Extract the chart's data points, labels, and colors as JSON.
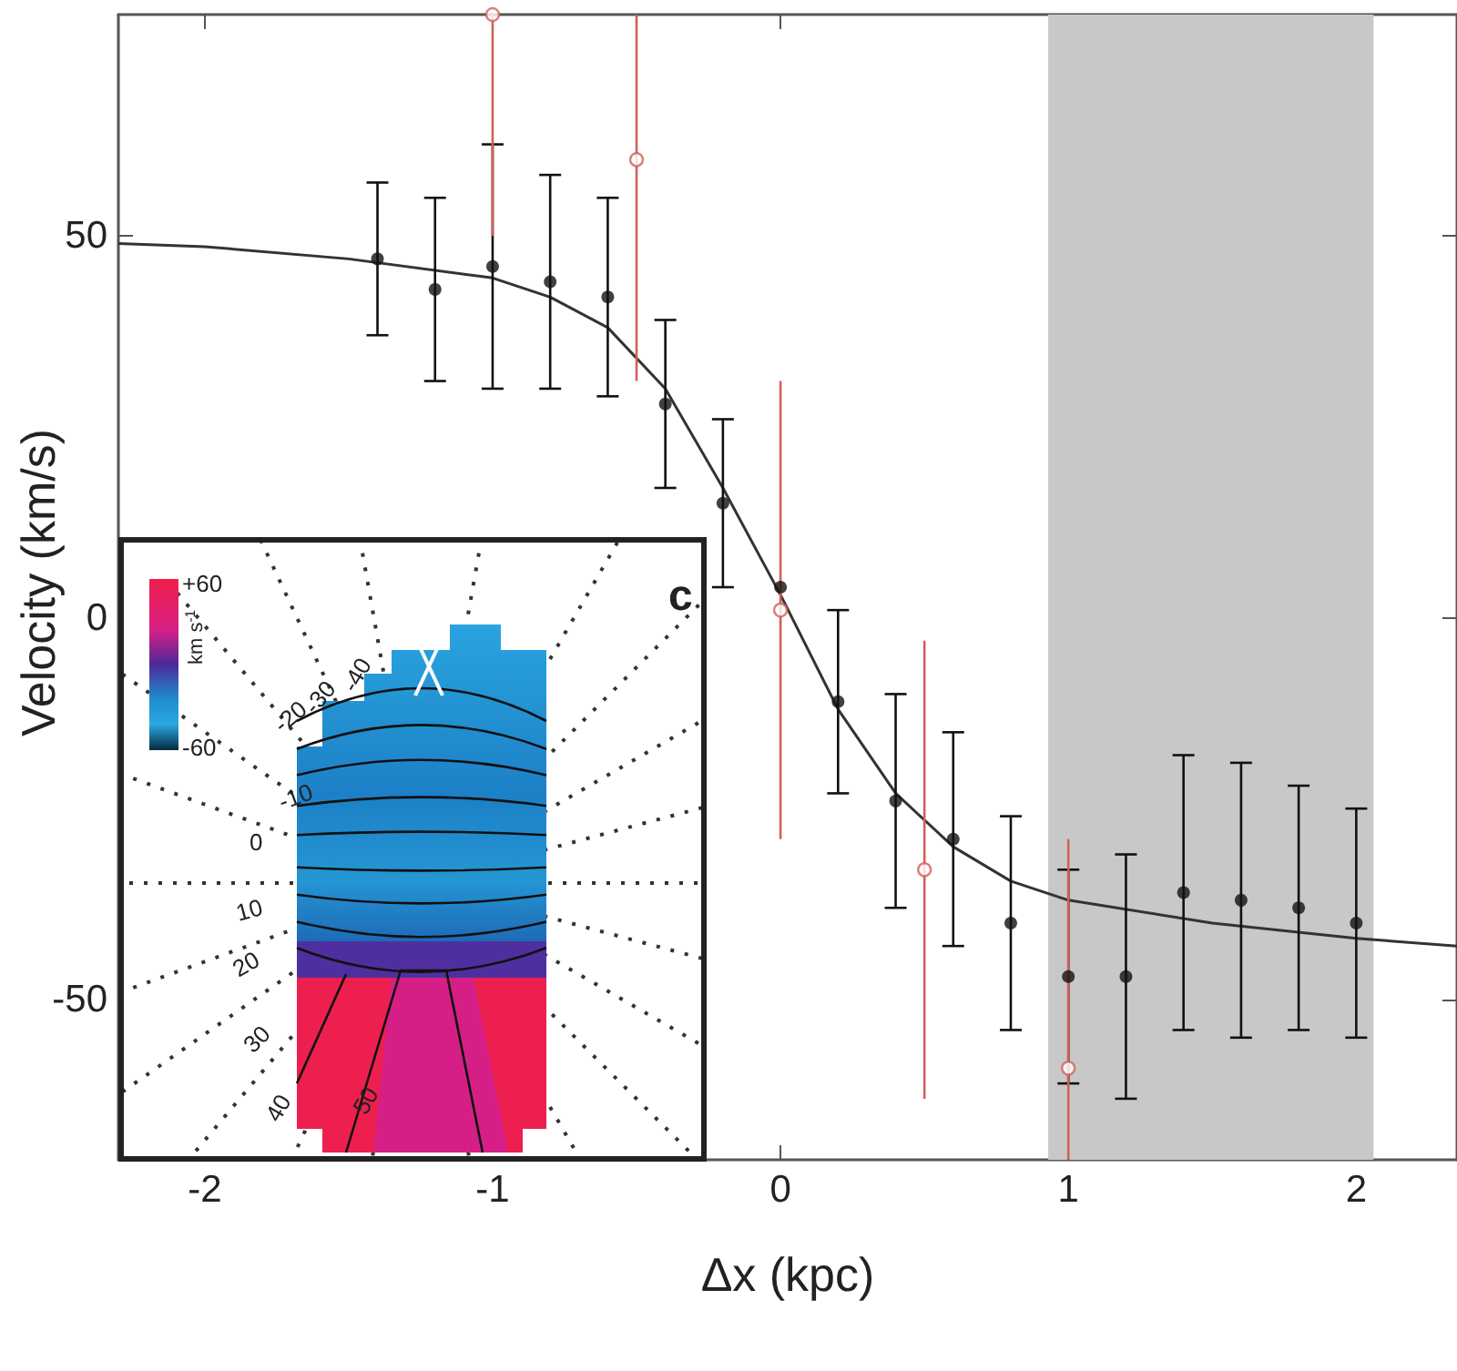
{
  "chart_data": {
    "type": "scatter",
    "xlabel": "Δx (kpc)",
    "ylabel": "Velocity (km/s)",
    "xlim": [
      -2.3,
      2.35
    ],
    "xticks": [
      -2,
      -1,
      0,
      1,
      2
    ],
    "ylim": [
      -71,
      79
    ],
    "yticks": [
      -50,
      0,
      50
    ],
    "grid": false,
    "marker": "circle",
    "series": [
      {
        "color": "#111111",
        "x": [
          -1.4,
          -1.2,
          -1.0,
          -0.8,
          -0.6,
          -0.4,
          -0.2,
          0,
          0.2,
          0.4,
          0.6,
          0.8,
          1.0,
          1.2,
          1.4,
          1.6,
          1.8,
          2.0
        ],
        "values": [
          47,
          43,
          46,
          44,
          42,
          28,
          15,
          4,
          -11,
          -24,
          -29,
          -40,
          -47,
          -47,
          -36,
          -37,
          -38,
          -40
        ],
        "errors": [
          10,
          12,
          16,
          14,
          13,
          11,
          11,
          null,
          12,
          14,
          14,
          14,
          14,
          16,
          18,
          18,
          16,
          15
        ]
      },
      {
        "color": "#d0605a",
        "x": [
          -1.0,
          -0.5,
          0,
          0.5,
          1.0
        ],
        "values": [
          79,
          60,
          1,
          -33,
          -59
        ],
        "errors": [
          [
            50,
            79
          ],
          [
            31,
            79
          ],
          30,
          30,
          [
            -71,
            -29
          ]
        ]
      },
      {
        "type": "line",
        "color": "#333333",
        "marker": "none",
        "x": [
          -2.3,
          -2,
          -1.5,
          -1,
          -0.8,
          -0.6,
          -0.4,
          -0.2,
          0,
          0.2,
          0.4,
          0.6,
          0.8,
          1,
          1.5,
          2,
          2.35
        ],
        "values": [
          49,
          48.6,
          47,
          44.5,
          42,
          38,
          30,
          17,
          3,
          -12,
          -23,
          -30,
          -34.5,
          -37,
          -40,
          -42,
          -43
        ]
      }
    ],
    "bands": [
      {
        "axis": "x",
        "from": 0.93,
        "to": 2.06,
        "color": "#c8c8c8"
      }
    ],
    "annotations": [
      "c",
      "+60",
      "-60",
      "km s$^{-1}$",
      "-40",
      "-30",
      "-20",
      "-10",
      "0",
      "10",
      "20",
      "30",
      "40",
      "50"
    ]
  }
}
